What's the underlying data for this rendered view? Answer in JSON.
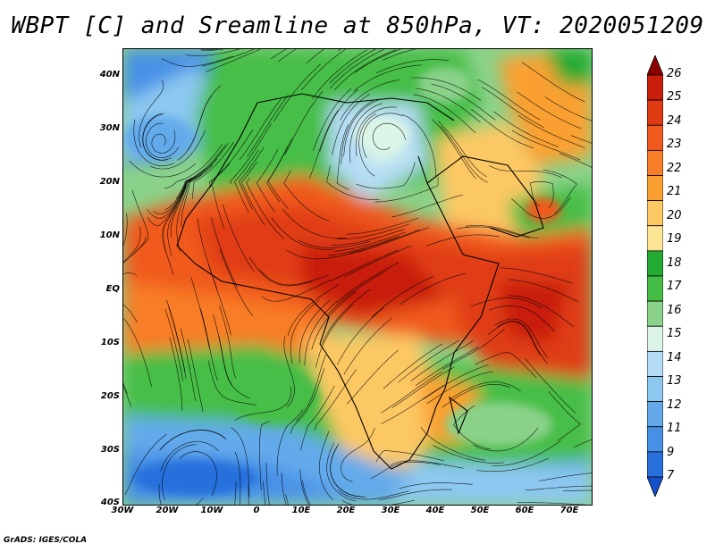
{
  "title": "WBPT [C] and Sreamline at 850hPa, VT: 2020051209",
  "credit": "GrADS: IGES/COLA",
  "lat_labels": [
    "40N",
    "30N",
    "20N",
    "10N",
    "EQ",
    "10S",
    "20S",
    "30S",
    "40S"
  ],
  "lon_labels": [
    "30W",
    "20W",
    "10W",
    "0",
    "10E",
    "20E",
    "30E",
    "40E",
    "50E",
    "60E",
    "70E"
  ],
  "colorbar": {
    "labels": [
      "26",
      "25",
      "24",
      "23",
      "22",
      "21",
      "20",
      "19",
      "18",
      "17",
      "16",
      "15",
      "14",
      "13",
      "12",
      "11",
      "9",
      "7"
    ],
    "colors": [
      "#8b0000",
      "#c81e0a",
      "#e03c14",
      "#f05a1e",
      "#f87d28",
      "#faa032",
      "#fcc864",
      "#fce696",
      "#23aa32",
      "#46be46",
      "#8ad28a",
      "#dcf5e6",
      "#b4dcf5",
      "#8cc8f0",
      "#64aaeb",
      "#4690e6",
      "#2870dc",
      "#1450c8"
    ]
  },
  "map_meta": {
    "lon_range": [
      -30,
      75
    ],
    "lat_range": [
      -40,
      45
    ],
    "variable": "WBPT [C]",
    "level": "850hPa",
    "valid_time": "2020051209"
  }
}
